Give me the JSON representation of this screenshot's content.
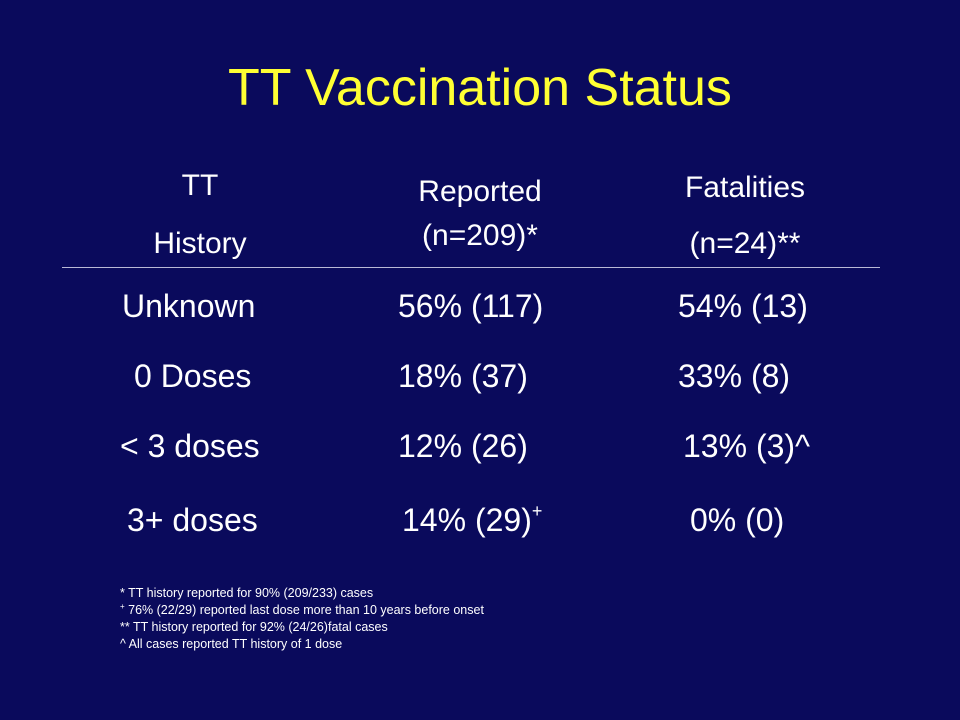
{
  "slide": {
    "title": "TT Vaccination Status",
    "title_color": "#ffff33",
    "background_color": "#0a0a5c"
  },
  "table": {
    "headers": {
      "history": [
        "TT",
        "History"
      ],
      "reported": [
        "Reported",
        "(n=209)*"
      ],
      "fatalities": [
        "Fatalities",
        "(n=24)**"
      ]
    },
    "rows": [
      {
        "history": "Unknown",
        "reported": "56% (117)",
        "fatalities": "54% (13)"
      },
      {
        "history": "0 Doses",
        "reported": "18% (37)",
        "fatalities": "33% (8)"
      },
      {
        "history": "< 3 doses",
        "reported": "12% (26)",
        "fatalities": "13% (3)^"
      },
      {
        "history": "3+ doses",
        "reported": "14% (29)",
        "reported_sup": "+",
        "fatalities": "0% (0)"
      }
    ]
  },
  "footnotes": [
    {
      "marker": "",
      "text": "* TT history reported for  90% (209/233) cases"
    },
    {
      "marker": "+",
      "text": " 76% (22/29) reported  last dose more than 10 years before onset"
    },
    {
      "marker": "",
      "text": "** TT history reported for  92% (24/26)fatal cases"
    },
    {
      "marker": "",
      "text": "^ All cases reported  TT history of 1 dose"
    }
  ]
}
